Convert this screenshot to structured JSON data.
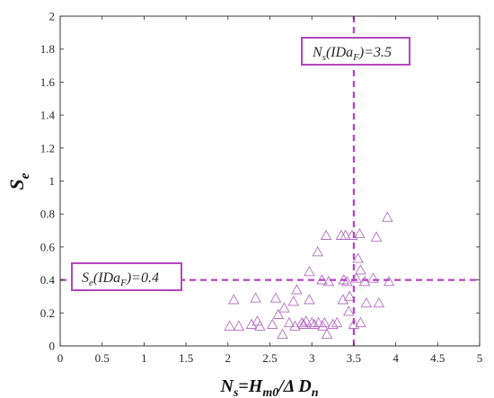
{
  "chart_data": {
    "type": "scatter",
    "xlim": [
      0,
      5
    ],
    "ylim": [
      0,
      2
    ],
    "x_ticks": [
      "0",
      "0.5",
      "1",
      "1.5",
      "2",
      "2.5",
      "3",
      "3.5",
      "4",
      "4.5",
      "5"
    ],
    "y_ticks": [
      "0",
      "0.2",
      "0.4",
      "0.6",
      "0.8",
      "1",
      "1.2",
      "1.4",
      "1.6",
      "1.8",
      "2"
    ],
    "xlabel": {
      "main": "N",
      "sub": "s",
      "mid": "=H",
      "sub2": "m0",
      "tail": "/Δ D",
      "sub3": "n"
    },
    "ylabel": {
      "main": "S",
      "sub": "e"
    },
    "grid": false,
    "marker": "triangle-open",
    "marker_color": "#b36fc0",
    "line_color": "#b545c0",
    "series": [
      {
        "points": [
          [
            2.02,
            0.12
          ],
          [
            2.07,
            0.28
          ],
          [
            2.13,
            0.12
          ],
          [
            2.28,
            0.13
          ],
          [
            2.33,
            0.29
          ],
          [
            2.35,
            0.15
          ],
          [
            2.38,
            0.12
          ],
          [
            2.53,
            0.13
          ],
          [
            2.57,
            0.29
          ],
          [
            2.6,
            0.19
          ],
          [
            2.65,
            0.07
          ],
          [
            2.67,
            0.23
          ],
          [
            2.73,
            0.14
          ],
          [
            2.78,
            0.27
          ],
          [
            2.8,
            0.12
          ],
          [
            2.82,
            0.34
          ],
          [
            2.88,
            0.14
          ],
          [
            2.9,
            0.13
          ],
          [
            2.93,
            0.15
          ],
          [
            2.97,
            0.45
          ],
          [
            2.97,
            0.28
          ],
          [
            3.0,
            0.14
          ],
          [
            3.03,
            0.13
          ],
          [
            3.07,
            0.57
          ],
          [
            3.08,
            0.14
          ],
          [
            3.12,
            0.4
          ],
          [
            3.13,
            0.12
          ],
          [
            3.15,
            0.14
          ],
          [
            3.17,
            0.67
          ],
          [
            3.18,
            0.07
          ],
          [
            3.2,
            0.39
          ],
          [
            3.25,
            0.13
          ],
          [
            3.3,
            0.14
          ],
          [
            3.35,
            0.67
          ],
          [
            3.37,
            0.28
          ],
          [
            3.38,
            0.4
          ],
          [
            3.4,
            0.67
          ],
          [
            3.42,
            0.39
          ],
          [
            3.44,
            0.21
          ],
          [
            3.45,
            0.3
          ],
          [
            3.48,
            0.67
          ],
          [
            3.5,
            0.13
          ],
          [
            3.53,
            0.41
          ],
          [
            3.55,
            0.53
          ],
          [
            3.57,
            0.68
          ],
          [
            3.58,
            0.46
          ],
          [
            3.58,
            0.14
          ],
          [
            3.63,
            0.39
          ],
          [
            3.65,
            0.26
          ],
          [
            3.73,
            0.41
          ],
          [
            3.77,
            0.66
          ],
          [
            3.8,
            0.26
          ],
          [
            3.9,
            0.78
          ],
          [
            3.92,
            0.39
          ]
        ]
      }
    ],
    "reference_lines": [
      {
        "axis": "x",
        "value": 3.5,
        "label_main": "N",
        "label_sub": "s",
        "label_paren": "(IDa",
        "label_sub2": "F",
        "label_tail": ")=3.5"
      },
      {
        "axis": "y",
        "value": 0.4,
        "label_main": "S",
        "label_sub": "e",
        "label_paren": "(IDa",
        "label_sub2": "F",
        "label_tail": ")=0.4"
      }
    ]
  }
}
